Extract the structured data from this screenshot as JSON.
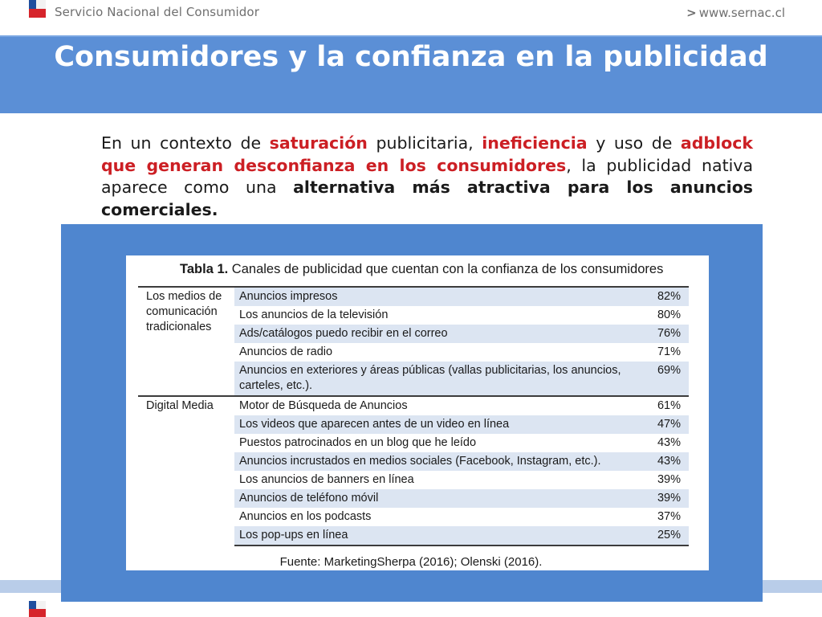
{
  "header": {
    "org_name": "Servicio Nacional del Consumidor",
    "site_url": "www.sernac.cl"
  },
  "slide": {
    "title": "Consumidores y la confianza en la publicidad",
    "paragraph": {
      "p1": "En un contexto de ",
      "p2": "saturación",
      "p3": " publicitaria, ",
      "p4": "ineficiencia",
      "p5": " y uso de ",
      "p6": "adblock que generan desconfianza en los consumidores",
      "p7": ", la publicidad nativa aparece como una ",
      "p8": "alternativa más atractiva para los anuncios comerciales."
    }
  },
  "table": {
    "caption_bold": "Tabla 1.",
    "caption_rest": " Canales de publicidad que cuentan con la confianza de los consumidores",
    "groups": [
      {
        "category": "Los medios de comunicación tradicionales",
        "rows": [
          {
            "item": "Anuncios impresos",
            "value": "82%"
          },
          {
            "item": "Los anuncios de la televisión",
            "value": "80%"
          },
          {
            "item": "Ads/catálogos puedo recibir en el correo",
            "value": "76%"
          },
          {
            "item": "Anuncios de radio",
            "value": "71%"
          },
          {
            "item": "Anuncios en exteriores y áreas públicas (vallas publicitarias, los anuncios, carteles, etc.).",
            "value": "69%"
          }
        ]
      },
      {
        "category": "Digital Media",
        "rows": [
          {
            "item": "Motor de Búsqueda de Anuncios",
            "value": "61%"
          },
          {
            "item": "Los videos que aparecen antes de un video en línea",
            "value": "47%"
          },
          {
            "item": "Puestos patrocinados en un blog que he leído",
            "value": "43%"
          },
          {
            "item": "Anuncios incrustados en medios sociales (Facebook, Instagram, etc.).",
            "value": "43%"
          },
          {
            "item": "Los anuncios de banners en línea",
            "value": "39%"
          },
          {
            "item": "Anuncios de teléfono móvil",
            "value": "39%"
          },
          {
            "item": "Anuncios en los podcasts",
            "value": "37%"
          },
          {
            "item": "Los pop-ups en línea",
            "value": "25%"
          }
        ]
      }
    ],
    "source": "Fuente: MarketingSherpa (2016); Olenski (2016)."
  },
  "colors": {
    "title_band": "#5b8fd6",
    "panel": "#4f86cf",
    "highlight_red": "#cc1f24",
    "row_shade": "#dce5f2"
  }
}
